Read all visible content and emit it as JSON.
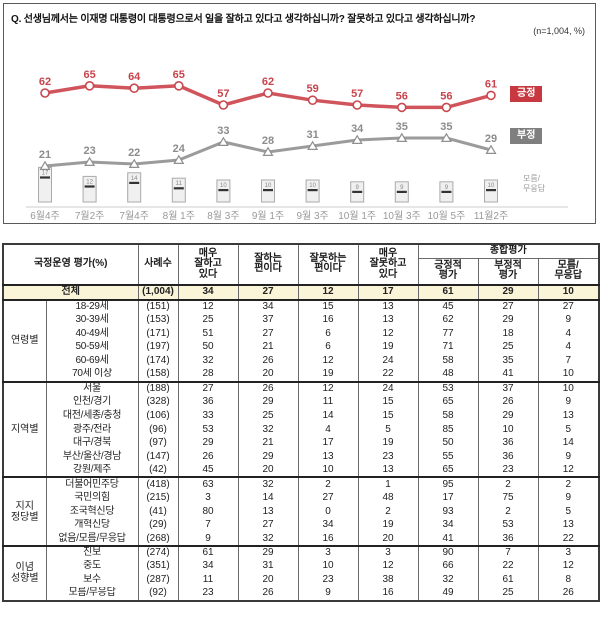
{
  "title": "Q. 선생님께서는 이재명 대통령이 대통령으로서 일을 잘하고 있다고 생각하십니까? 잘못하고 있다고 생각하십니까?",
  "sample_note": "(n=1,004, %)",
  "colors": {
    "positive": "#c73840",
    "positive_line": "#d0545b",
    "negative": "#7f7f7f",
    "negative_line": "#9b9b9b",
    "highlight_row": "#faf4d8"
  },
  "chart_data": {
    "type": "line",
    "x": [
      "6월4주",
      "7월2주",
      "7월4주",
      "8월 1주",
      "8월 3주",
      "9월 1주",
      "9월 3주",
      "10월 1주",
      "10월 3주",
      "10월 5주",
      "11월2주"
    ],
    "series": [
      {
        "name": "긍정",
        "type": "line",
        "color": "#d0545b",
        "label_color": "#c8454d",
        "values": [
          62,
          65,
          64,
          65,
          57,
          62,
          59,
          57,
          56,
          56,
          61
        ]
      },
      {
        "name": "부정",
        "type": "line",
        "color": "#9b9b9b",
        "label_color": "#8c8c8c",
        "values": [
          21,
          23,
          22,
          24,
          33,
          28,
          31,
          34,
          35,
          35,
          29
        ]
      },
      {
        "name": "모름/무응답",
        "type": "bar",
        "color": "#f0f0f0",
        "values": [
          17,
          12,
          14,
          11,
          10,
          10,
          10,
          9,
          9,
          9,
          10
        ]
      }
    ],
    "legend": {
      "positive": "긍정",
      "negative": "부정",
      "unknown": "모름/\n무응답"
    },
    "ylim": [
      0,
      100
    ],
    "grid": false,
    "legend_position": "right"
  },
  "table": {
    "col_headers": [
      "국정운영 평가(%)",
      "사례수",
      "매우\n잘하고\n있다",
      "잘하는\n편이다",
      "잘못하는\n편이다",
      "매우\n잘못하고\n있다"
    ],
    "overall_header": "종합평가",
    "overall_subheaders": [
      "긍정적\n평가",
      "부정적\n평가",
      "모름/\n무응답"
    ],
    "total_row": {
      "label": "전체",
      "n": "(1,004)",
      "values": [
        34,
        27,
        12,
        17,
        61,
        29,
        10
      ]
    },
    "groups": [
      {
        "name": "연령별",
        "rows": [
          {
            "label": "18-29세",
            "n": "(151)",
            "values": [
              12,
              34,
              15,
              13,
              45,
              27,
              27
            ]
          },
          {
            "label": "30-39세",
            "n": "(153)",
            "values": [
              25,
              37,
              16,
              13,
              62,
              29,
              9
            ]
          },
          {
            "label": "40-49세",
            "n": "(171)",
            "values": [
              51,
              27,
              6,
              12,
              77,
              18,
              4
            ]
          },
          {
            "label": "50-59세",
            "n": "(197)",
            "values": [
              50,
              21,
              6,
              19,
              71,
              25,
              4
            ]
          },
          {
            "label": "60-69세",
            "n": "(174)",
            "values": [
              32,
              26,
              12,
              24,
              58,
              35,
              7
            ]
          },
          {
            "label": "70세 이상",
            "n": "(158)",
            "values": [
              28,
              20,
              19,
              22,
              48,
              41,
              10
            ]
          }
        ]
      },
      {
        "name": "지역별",
        "rows": [
          {
            "label": "서울",
            "n": "(188)",
            "values": [
              27,
              26,
              12,
              24,
              53,
              37,
              10
            ]
          },
          {
            "label": "인천/경기",
            "n": "(328)",
            "values": [
              36,
              29,
              11,
              15,
              65,
              26,
              9
            ]
          },
          {
            "label": "대전/세종/충청",
            "n": "(106)",
            "values": [
              33,
              25,
              14,
              15,
              58,
              29,
              13
            ]
          },
          {
            "label": "광주/전라",
            "n": "(96)",
            "values": [
              53,
              32,
              4,
              5,
              85,
              10,
              5
            ]
          },
          {
            "label": "대구/경북",
            "n": "(97)",
            "values": [
              29,
              21,
              17,
              19,
              50,
              36,
              14
            ]
          },
          {
            "label": "부산/울산/경남",
            "n": "(147)",
            "values": [
              26,
              29,
              13,
              23,
              55,
              36,
              9
            ]
          },
          {
            "label": "강원/제주",
            "n": "(42)",
            "values": [
              45,
              20,
              10,
              13,
              65,
              23,
              12
            ]
          }
        ]
      },
      {
        "name": "지지\n정당별",
        "rows": [
          {
            "label": "더불어민주당",
            "n": "(418)",
            "values": [
              63,
              32,
              2,
              1,
              95,
              2,
              2
            ]
          },
          {
            "label": "국민의힘",
            "n": "(215)",
            "values": [
              3,
              14,
              27,
              48,
              17,
              75,
              9
            ]
          },
          {
            "label": "조국혁신당",
            "n": "(41)",
            "values": [
              80,
              13,
              0,
              2,
              93,
              2,
              5
            ]
          },
          {
            "label": "개혁신당",
            "n": "(29)",
            "values": [
              7,
              27,
              34,
              19,
              34,
              53,
              13
            ]
          },
          {
            "label": "없음/모름/무응답",
            "n": "(268)",
            "values": [
              9,
              32,
              16,
              20,
              41,
              36,
              22
            ]
          }
        ]
      },
      {
        "name": "이념\n성향별",
        "rows": [
          {
            "label": "진보",
            "n": "(274)",
            "values": [
              61,
              29,
              3,
              3,
              90,
              7,
              3
            ]
          },
          {
            "label": "중도",
            "n": "(351)",
            "values": [
              34,
              31,
              10,
              12,
              66,
              22,
              12
            ]
          },
          {
            "label": "보수",
            "n": "(287)",
            "values": [
              11,
              20,
              23,
              38,
              32,
              61,
              8
            ]
          },
          {
            "label": "모름/무응답",
            "n": "(92)",
            "values": [
              23,
              26,
              9,
              16,
              49,
              25,
              26
            ]
          }
        ]
      }
    ]
  }
}
